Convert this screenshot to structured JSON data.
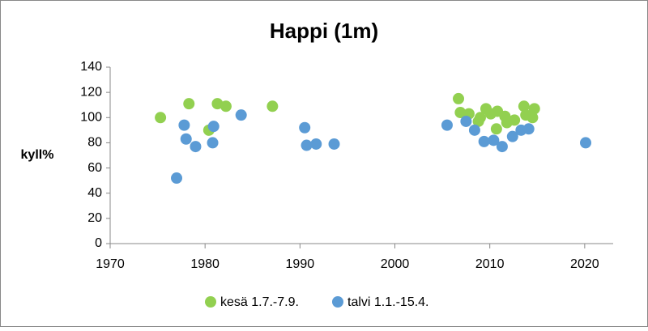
{
  "chart_data": {
    "type": "scatter",
    "title": "Happi (1m)",
    "ylabel": "kyll%",
    "xlim": [
      1970,
      2023
    ],
    "xticks": [
      1970,
      1980,
      1990,
      2000,
      2010,
      2020
    ],
    "ylim": [
      0,
      140
    ],
    "yticks": [
      0,
      20,
      40,
      60,
      80,
      100,
      120,
      140
    ],
    "series": [
      {
        "name": "kesä 1.7.-7.9.",
        "color": "#92d050",
        "x": [
          1975.3,
          1978.3,
          1980.4,
          1981.3,
          1982.2,
          1987.1,
          2006.7,
          2006.9,
          2007.8,
          2008.8,
          2009.0,
          2009.6,
          2010.1,
          2010.7,
          2010.8,
          2011.6,
          2011.8,
          2012.6,
          2013.6,
          2013.8,
          2014.5,
          2014.7
        ],
        "values": [
          100,
          111,
          90,
          111,
          109,
          109,
          115,
          104,
          103,
          97,
          100,
          107,
          103,
          91,
          105,
          101,
          96,
          98,
          109,
          102,
          100,
          107
        ]
      },
      {
        "name": "talvi 1.1.-15.4.",
        "color": "#5b9bd5",
        "x": [
          1977.0,
          1977.8,
          1978.0,
          1979.0,
          1980.8,
          1980.9,
          1983.8,
          1990.5,
          1990.7,
          1991.7,
          1993.6,
          2005.5,
          2007.5,
          2008.4,
          2009.4,
          2010.4,
          2011.3,
          2012.4,
          2013.3,
          2014.1,
          2020.1
        ],
        "values": [
          52,
          94,
          83,
          77,
          80,
          93,
          102,
          92,
          78,
          79,
          79,
          94,
          97,
          90,
          81,
          82,
          77,
          85,
          90,
          91,
          80
        ]
      }
    ]
  }
}
